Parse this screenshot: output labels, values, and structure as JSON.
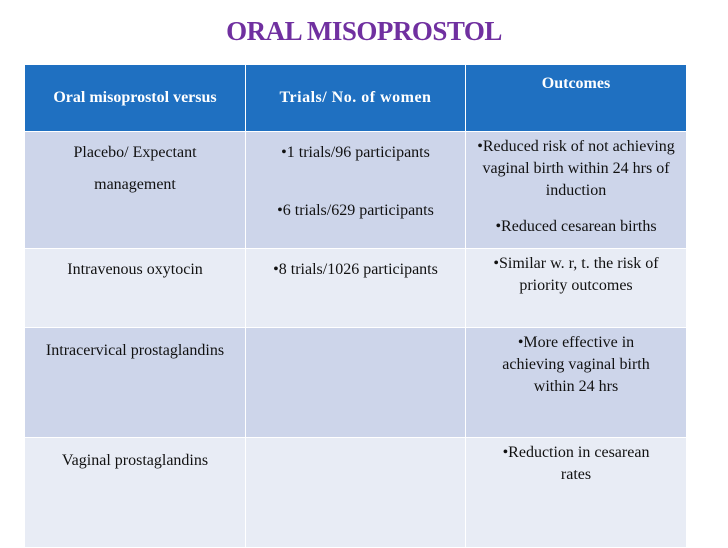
{
  "slide": {
    "title": "ORAL MISOPROSTOL"
  },
  "table": {
    "headers": {
      "comparison": "Oral misoprostol versus",
      "trials": "Trials/ No. of women",
      "outcomes": "Outcomes"
    },
    "rows": [
      {
        "comparison_line1": "Placebo/ Expectant",
        "comparison_line2": "management",
        "trial1": "•1 trials/96 participants",
        "trial2": "•6 trials/629 participants",
        "outcome1": "•Reduced risk of not achieving vaginal birth within 24 hrs of induction",
        "outcome2": "•Reduced cesarean births"
      },
      {
        "comparison": "Intravenous oxytocin",
        "trial": "•8 trials/1026 participants",
        "outcome": "•Similar w. r, t. the risk of priority outcomes"
      },
      {
        "comparison": "Intracervical prostaglandins",
        "trial": "",
        "outcome": "•More effective in achieving vaginal birth within 24 hrs"
      },
      {
        "comparison": "Vaginal prostaglandins",
        "trial": "",
        "outcome": "•Reduction in cesarean rates"
      }
    ]
  }
}
